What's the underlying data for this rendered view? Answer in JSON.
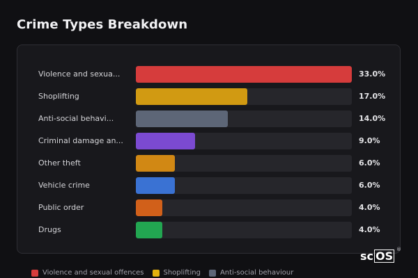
{
  "title": "Crime Types Breakdown",
  "chart_data": {
    "type": "bar",
    "orientation": "horizontal",
    "title": "Crime Types Breakdown",
    "categories": [
      "Violence and sexua...",
      "Shoplifting",
      "Anti-social behavi...",
      "Criminal damage an...",
      "Other theft",
      "Vehicle crime",
      "Public order",
      "Drugs"
    ],
    "values": [
      33.0,
      17.0,
      14.0,
      9.0,
      6.0,
      6.0,
      4.0,
      4.0
    ],
    "value_labels": [
      "33.0%",
      "17.0%",
      "14.0%",
      "9.0%",
      "6.0%",
      "6.0%",
      "4.0%",
      "4.0%"
    ],
    "colors": [
      "#d63c3c",
      "#d19a12",
      "#5d6677",
      "#7b4ad1",
      "#d18814",
      "#3a72d3",
      "#d1601a",
      "#22a651"
    ],
    "xlim": [
      0,
      33
    ],
    "grid": false
  },
  "legend": [
    {
      "label": "Violence and sexual offences",
      "color": "#d63c3c"
    },
    {
      "label": "Shoplifting",
      "color": "#e2b00f"
    },
    {
      "label": "Anti-social behaviour",
      "color": "#5d6677"
    }
  ],
  "logo": {
    "prefix": "sc",
    "boxed": "OS",
    "reg": "®"
  }
}
